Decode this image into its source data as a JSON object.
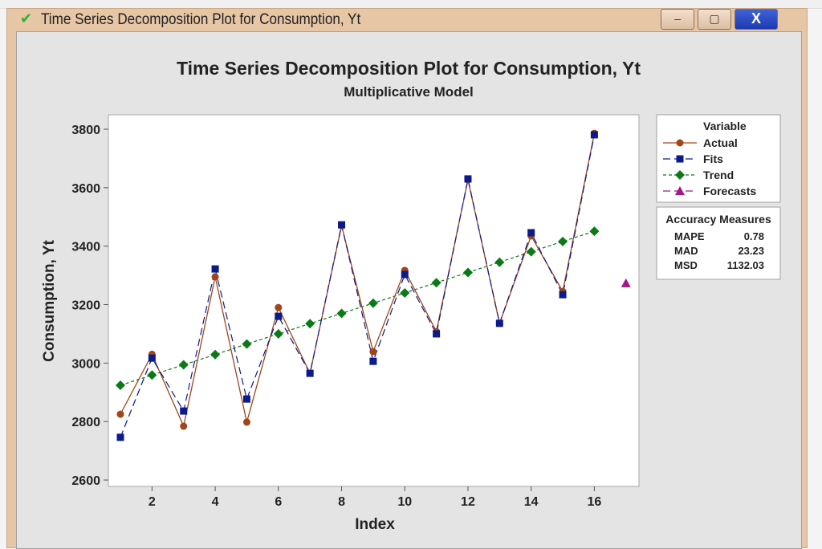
{
  "window": {
    "title": "Time Series Decomposition Plot for Consumption, Yt",
    "buttons": {
      "minimize": "–",
      "maximize": "▢",
      "close": "X"
    }
  },
  "colors": {
    "actual": "#a0461a",
    "fits": "#0d1a8c",
    "trend": "#0a7a16",
    "forecasts": "#a3168a"
  },
  "chart_data": {
    "type": "line",
    "title": "Time Series Decomposition Plot for Consumption, Yt",
    "subtitle": "Multiplicative Model",
    "xlabel": "Index",
    "ylabel": "Consumption, Yt",
    "xlim": [
      0.6,
      17.6
    ],
    "ylim": [
      2580,
      3850
    ],
    "xticks": [
      2,
      4,
      6,
      8,
      10,
      12,
      14,
      16
    ],
    "yticks": [
      2600,
      2800,
      3000,
      3200,
      3400,
      3600,
      3800
    ],
    "grid": false,
    "legend_placement": "right",
    "legend_title": "Variable",
    "x": [
      1,
      2,
      3,
      4,
      5,
      6,
      7,
      8,
      9,
      10,
      11,
      12,
      13,
      14,
      15,
      16
    ],
    "series": [
      {
        "name": "Actual",
        "values": [
          2825,
          3030,
          2784,
          3295,
          2798,
          3190,
          2965,
          3470,
          3039,
          3317,
          3108,
          3627,
          3136,
          3435,
          3245,
          3786
        ]
      },
      {
        "name": "Fits",
        "values": [
          2746,
          3017,
          2836,
          3322,
          2877,
          3160,
          2965,
          3473,
          3006,
          3303,
          3100,
          3630,
          3136,
          3446,
          3234,
          3781
        ]
      },
      {
        "name": "Trend",
        "values": [
          2924,
          2959,
          2994,
          3029,
          3065,
          3100,
          3135,
          3170,
          3205,
          3240,
          3275,
          3310,
          3345,
          3381,
          3416,
          3451
        ]
      },
      {
        "name": "Forecasts",
        "x": [
          17
        ],
        "values": [
          3273
        ]
      }
    ],
    "accuracy": {
      "title": "Accuracy Measures",
      "rows": [
        {
          "label": "MAPE",
          "value": "0.78"
        },
        {
          "label": "MAD",
          "value": "23.23"
        },
        {
          "label": "MSD",
          "value": "1132.03"
        }
      ]
    }
  }
}
